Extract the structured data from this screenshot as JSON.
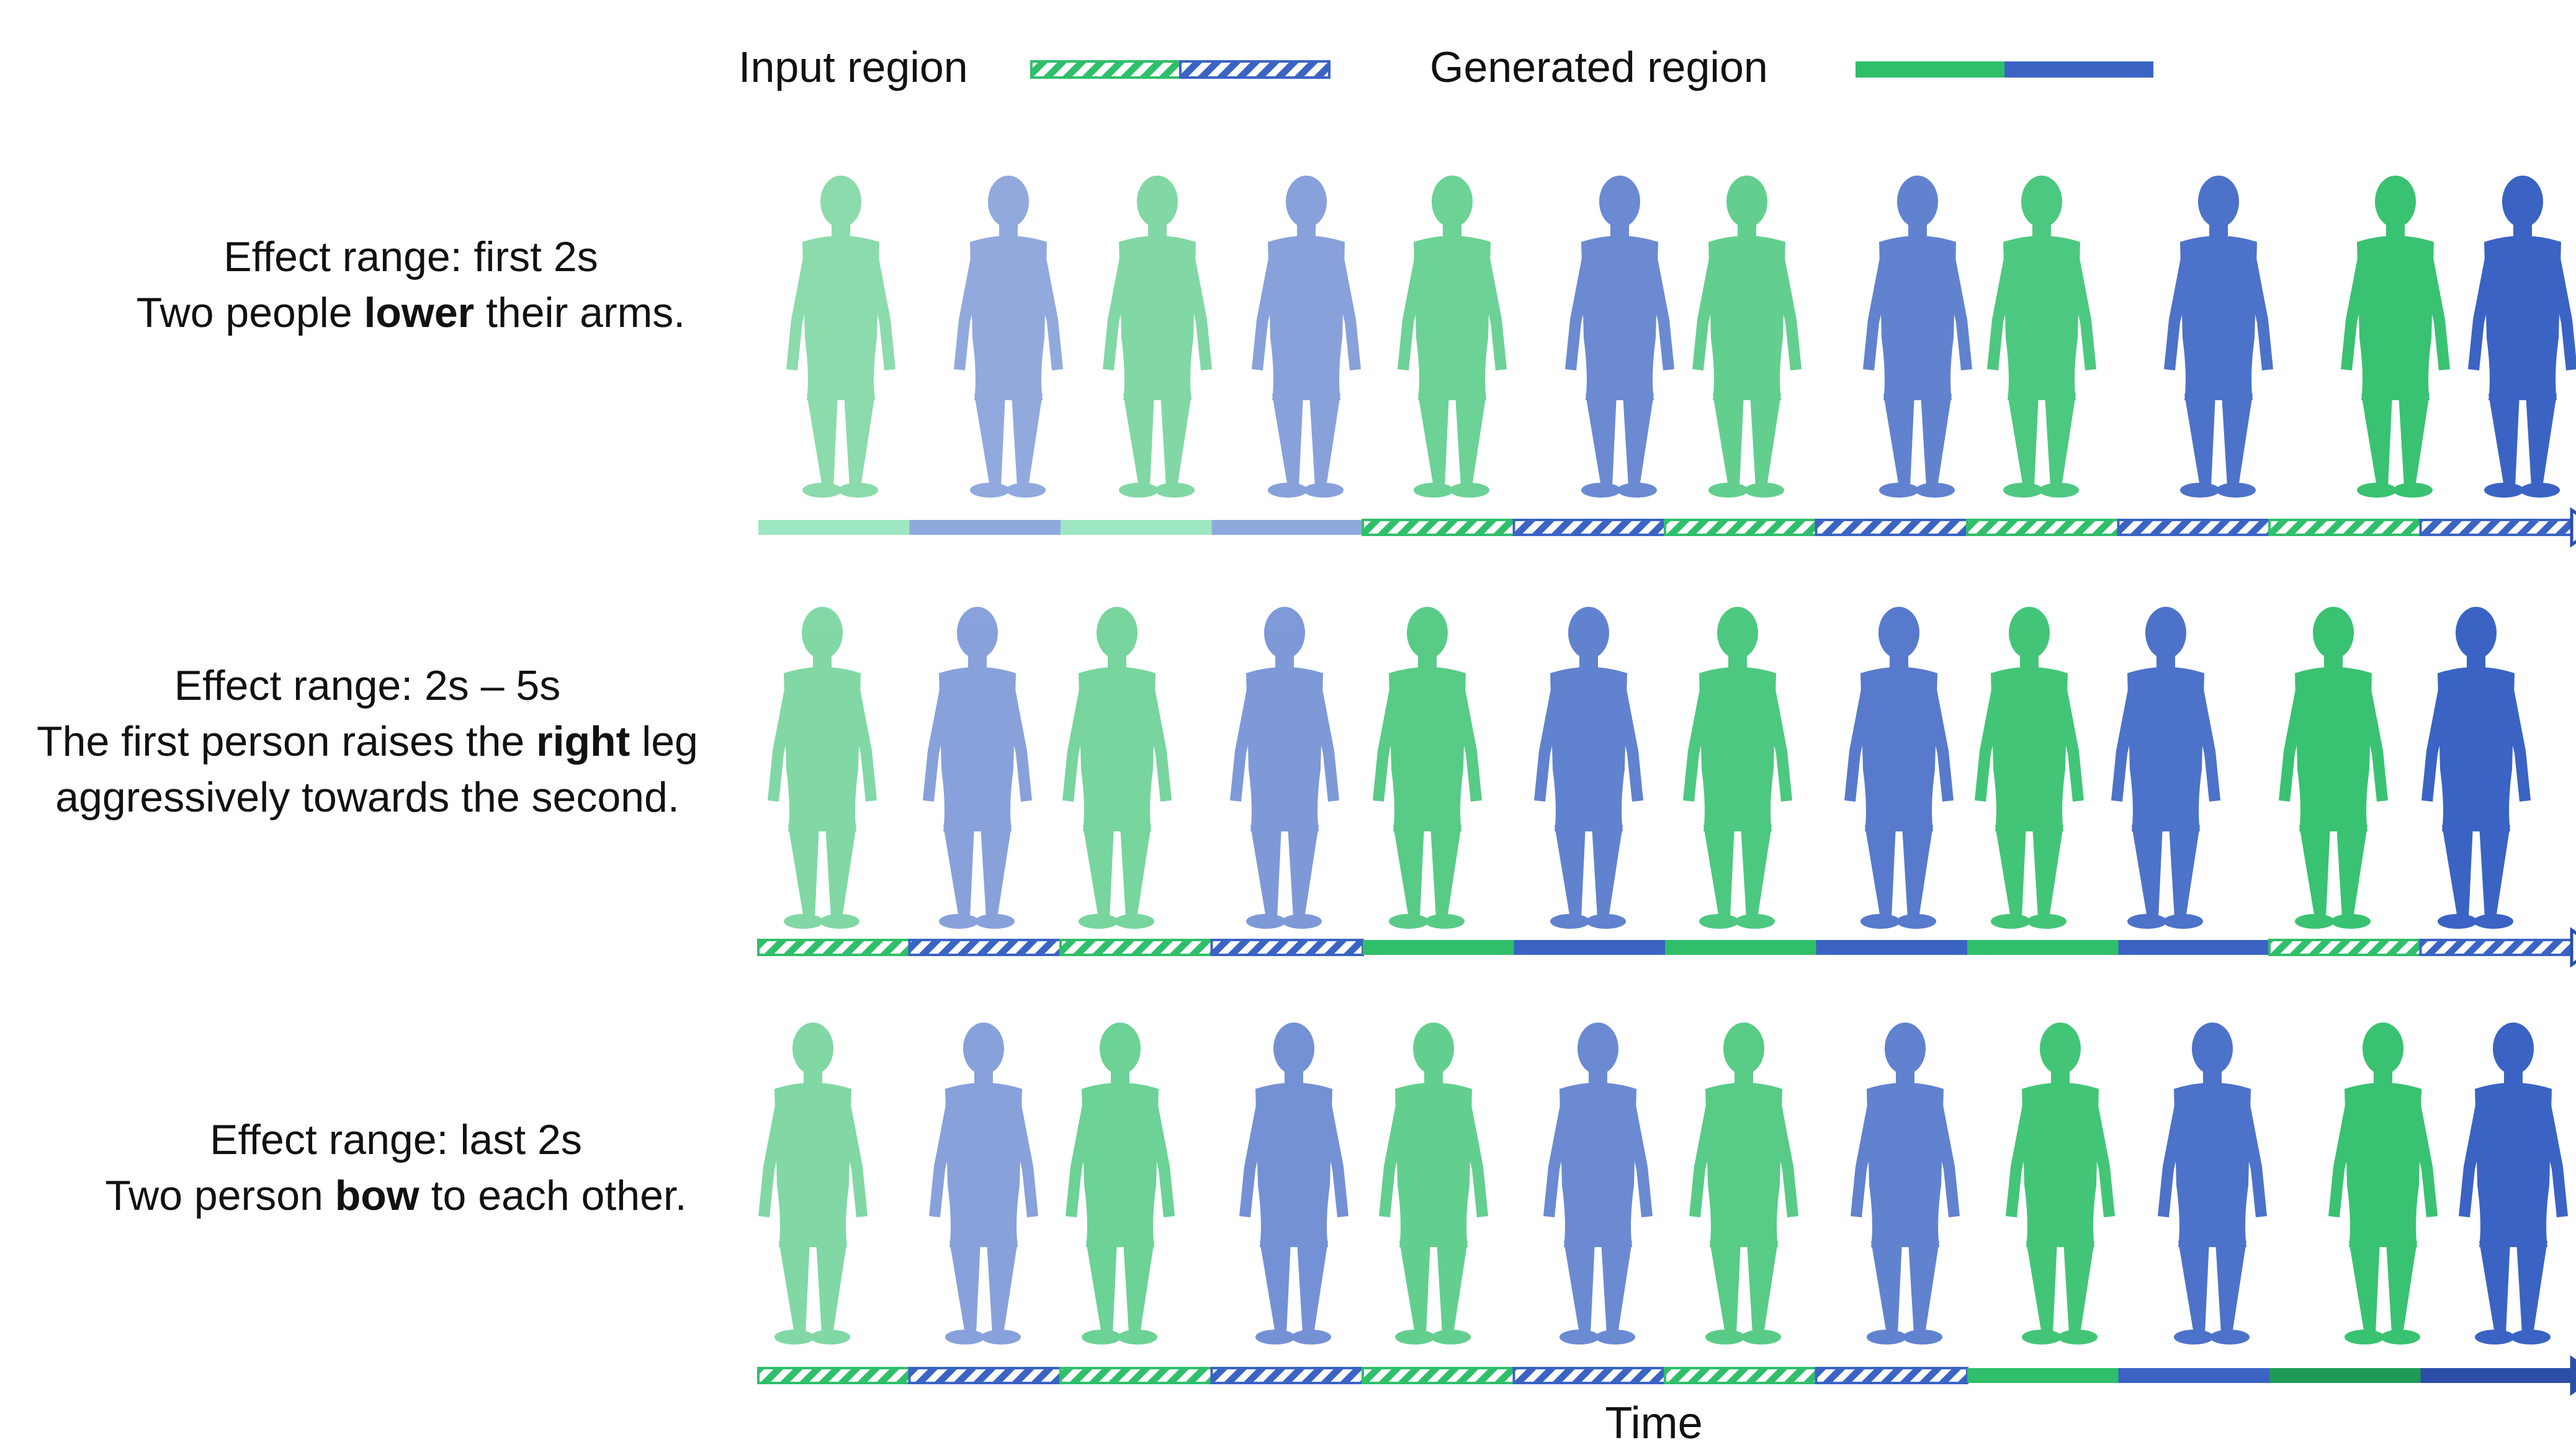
{
  "legend": {
    "input_label": "Input region",
    "generated_label": "Generated region"
  },
  "colors": {
    "green": "#2fbf6a",
    "blue": "#3a63c4",
    "green_light": "#9fe6c2",
    "blue_light": "#8fa9dd",
    "green_dark": "#1f9a55",
    "blue_dark": "#2c4ea6"
  },
  "rows": [
    {
      "range_text": "Effect range: first 2s",
      "caption_pre": "Two people ",
      "caption_bold": "lower",
      "caption_post": " their arms.",
      "timeline": [
        "solid",
        "solid",
        "solid",
        "solid",
        "hatch",
        "hatch",
        "hatch",
        "hatch",
        "hatch",
        "hatch",
        "hatch",
        "hatch"
      ]
    },
    {
      "range_text": "Effect range: 2s – 5s",
      "caption_pre": "The first person raises the ",
      "caption_bold": "right",
      "caption_post": " leg",
      "caption_line3": "aggressively towards the second.",
      "timeline": [
        "hatch",
        "hatch",
        "hatch",
        "hatch",
        "solid",
        "solid",
        "solid",
        "solid",
        "solid",
        "solid",
        "hatch",
        "hatch"
      ]
    },
    {
      "range_text": "Effect range: last 2s",
      "caption_pre": "Two person ",
      "caption_bold": "bow",
      "caption_post": " to each other.",
      "timeline": [
        "hatch",
        "hatch",
        "hatch",
        "hatch",
        "hatch",
        "hatch",
        "hatch",
        "hatch",
        "solid",
        "solid",
        "solid",
        "solid"
      ]
    }
  ],
  "axis": {
    "label": "Time"
  }
}
